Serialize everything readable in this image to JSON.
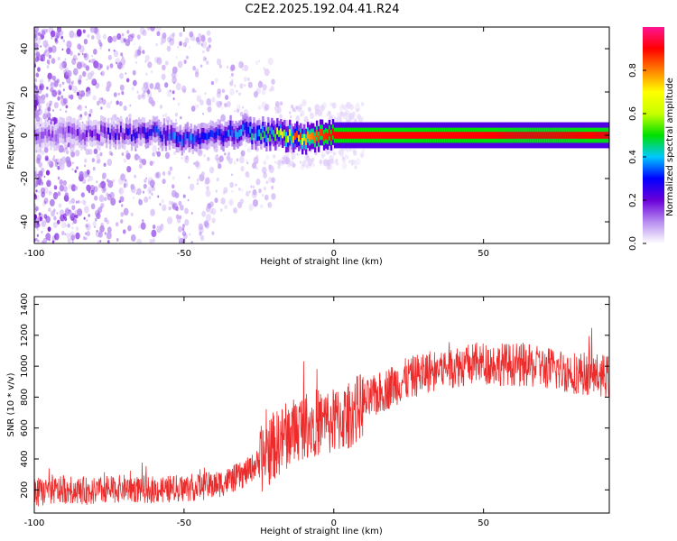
{
  "figure": {
    "title": "C2E2.2025.192.04.41.R24"
  },
  "colors": {
    "snr_line": "#ee2b2b",
    "background": "#ffffff",
    "frame": "#000000"
  },
  "colorbar": {
    "label": "Normalized spectral amplitude",
    "range": [
      0,
      1
    ],
    "ticks": [
      0,
      0.2,
      0.4,
      0.6,
      0.8
    ],
    "tick_labels": [
      "0.0",
      "0.2",
      "0.4",
      "0.6",
      "0.8"
    ],
    "colormap": [
      "#ffffff",
      "#b78cf0",
      "#6a00d8",
      "#0000ff",
      "#00c8ff",
      "#00e000",
      "#c8ff00",
      "#ffff00",
      "#ff8000",
      "#ff0000",
      "#ff1493"
    ]
  },
  "chart_data": [
    {
      "type": "heatmap",
      "xlabel": "Height of straight line (km)",
      "ylabel": "Frequency (Hz)",
      "xlim": [
        -100,
        92
      ],
      "ylim": [
        -50,
        50
      ],
      "x_ticks": [
        -100,
        -50,
        0,
        50
      ],
      "x_tick_labels": [
        "-100",
        "-50",
        "0",
        "50"
      ],
      "y_ticks": [
        -40,
        -20,
        0,
        20,
        40
      ],
      "y_tick_labels": [
        "-40",
        "-20",
        "0",
        "20",
        "40"
      ],
      "grid": false,
      "ridge": {
        "description_points_x": [
          -100,
          -80,
          -60,
          -50,
          -40,
          -30,
          -25,
          -20,
          -15,
          -10,
          -5,
          0,
          20,
          50,
          92
        ],
        "frequency_hz": [
          0,
          1,
          1,
          -2,
          0,
          2,
          1,
          0,
          0,
          -2,
          0,
          0,
          0,
          0,
          0
        ],
        "amplitude": [
          0.15,
          0.2,
          0.3,
          0.35,
          0.3,
          0.4,
          0.45,
          0.6,
          0.7,
          0.75,
          0.85,
          0.9,
          0.9,
          0.9,
          0.9
        ]
      }
    },
    {
      "type": "line",
      "xlabel": "Height of straight line (km)",
      "ylabel": "SNR (10 * v/v)",
      "xlim": [
        -100,
        92
      ],
      "ylim": [
        50,
        1450
      ],
      "x_ticks": [
        -100,
        -50,
        0,
        50
      ],
      "x_tick_labels": [
        "-100",
        "-50",
        "0",
        "50"
      ],
      "y_ticks": [
        200,
        400,
        600,
        800,
        1000,
        1200,
        1400
      ],
      "y_tick_labels": [
        "200",
        "400",
        "600",
        "800",
        "1000",
        "1200",
        "1400"
      ],
      "grid": false,
      "series": [
        {
          "x": [
            -100,
            -90,
            -80,
            -70,
            -60,
            -50,
            -45,
            -40,
            -35,
            -30,
            -25,
            -20,
            -15,
            -10,
            -5,
            0,
            5,
            10,
            20,
            30,
            40,
            50,
            60,
            70,
            80,
            90,
            92
          ],
          "values": [
            180,
            200,
            190,
            210,
            200,
            210,
            220,
            230,
            260,
            300,
            380,
            480,
            560,
            620,
            640,
            640,
            680,
            760,
            880,
            960,
            1000,
            1020,
            1010,
            990,
            960,
            940,
            930
          ]
        }
      ]
    }
  ]
}
